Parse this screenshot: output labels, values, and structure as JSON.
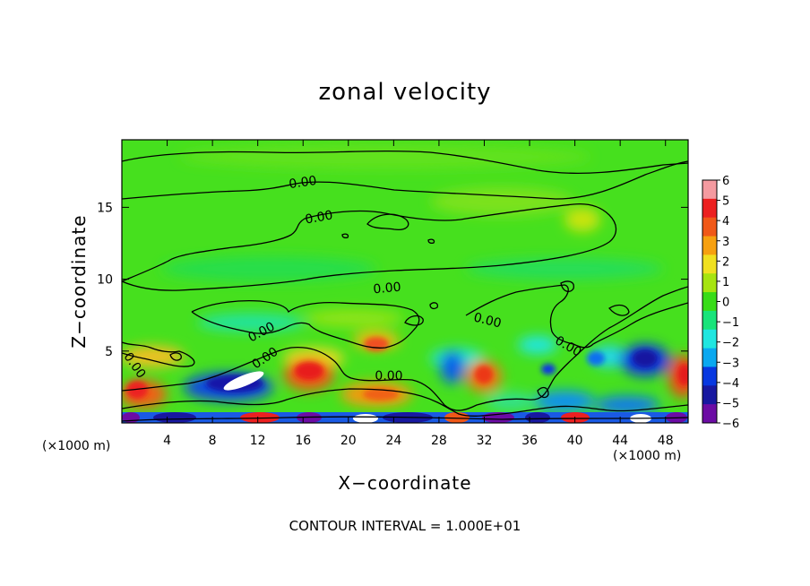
{
  "chart_data": {
    "type": "heatmap",
    "title": "zonal velocity",
    "xlabel": "X−coordinate",
    "ylabel": "Z−coordinate",
    "x_unit_label": "(×1000 m)",
    "footer": "CONTOUR INTERVAL = 1.000E+01",
    "xlim": [
      0,
      50
    ],
    "ylim": [
      0,
      19.7
    ],
    "x_ticks": [
      4,
      8,
      12,
      16,
      20,
      24,
      28,
      32,
      36,
      40,
      44,
      48
    ],
    "y_ticks": [
      5,
      10,
      15
    ],
    "colorbar": {
      "ticks": [
        "6",
        "5",
        "4",
        "3",
        "2",
        "1",
        "0",
        "−1",
        "−2",
        "−3",
        "−4",
        "−5",
        "−6"
      ],
      "colors": [
        "#f49aa0",
        "#ec2020",
        "#f05818",
        "#f6a010",
        "#f0e020",
        "#a6e410",
        "#38dc18",
        "#18e47a",
        "#20e6e0",
        "#0aa8f0",
        "#0838e0",
        "#1818a0",
        "#6c0ca4"
      ],
      "range": [
        -6,
        6
      ]
    },
    "contour_labels": [
      "0.00",
      "0.00",
      "0.00",
      "0.00",
      "0.00",
      "0.00",
      "0.00",
      "0.00",
      "0.00"
    ],
    "features": [
      {
        "name": "near-surface jet",
        "x": 2.5,
        "z": 2.2,
        "value": 5
      },
      {
        "name": "near-surface jet",
        "x": 5.5,
        "z": 0.8,
        "value": 3
      },
      {
        "name": "blue trough",
        "x": 10.5,
        "z": 2.8,
        "value": -5
      },
      {
        "name": "white extreme",
        "x": 11,
        "z": 2.8,
        "value": -6.5
      },
      {
        "name": "red core",
        "x": 16.5,
        "z": 3.6,
        "value": 5
      },
      {
        "name": "red core",
        "x": 22,
        "z": 5.5,
        "value": 4
      },
      {
        "name": "orange core",
        "x": 24,
        "z": 2.2,
        "value": 3
      },
      {
        "name": "blue trough",
        "x": 29.8,
        "z": 4.0,
        "value": -4
      },
      {
        "name": "orange core",
        "x": 32.5,
        "z": 3.6,
        "value": 4
      },
      {
        "name": "blue trough",
        "x": 46,
        "z": 4.5,
        "value": -5
      },
      {
        "name": "red core",
        "x": 49,
        "z": 3.5,
        "value": 4
      },
      {
        "name": "surface trough",
        "x": 20,
        "z": 0.3,
        "value": -6
      }
    ]
  }
}
